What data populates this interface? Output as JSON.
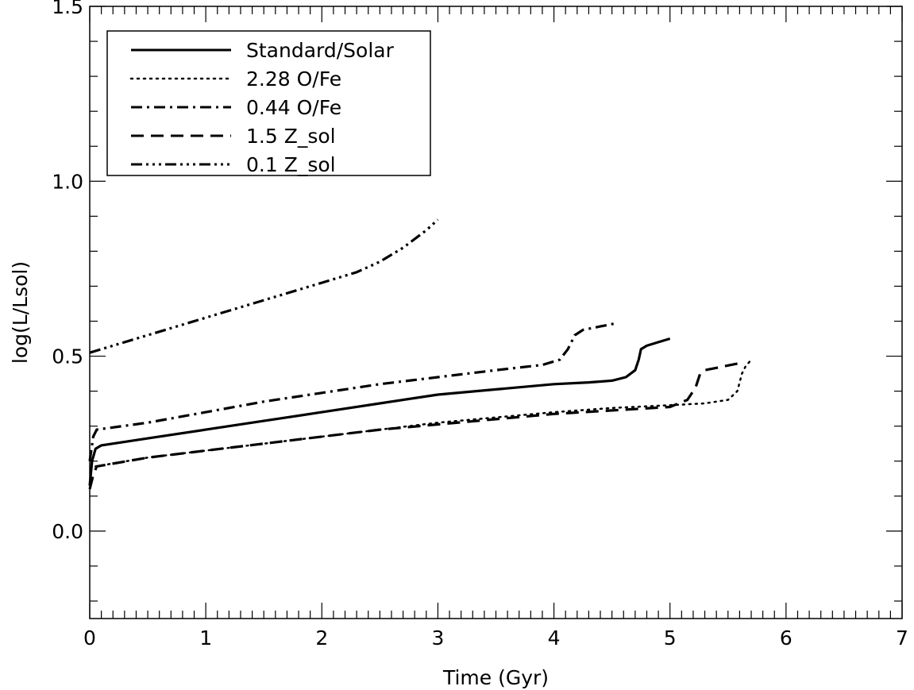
{
  "chart_data": {
    "type": "line",
    "xlabel": "Time (Gyr)",
    "ylabel": "log(L/Lsol)",
    "xlim": [
      0,
      7
    ],
    "ylim": [
      -0.25,
      1.5
    ],
    "x_ticks": [
      {
        "value": 0,
        "label": "0"
      },
      {
        "value": 1,
        "label": "1"
      },
      {
        "value": 2,
        "label": "2"
      },
      {
        "value": 3,
        "label": "3"
      },
      {
        "value": 4,
        "label": "4"
      },
      {
        "value": 5,
        "label": "5"
      },
      {
        "value": 6,
        "label": "6"
      },
      {
        "value": 7,
        "label": "7"
      }
    ],
    "y_ticks": [
      {
        "value": 0.0,
        "label": "0.0"
      },
      {
        "value": 0.5,
        "label": "0.5"
      },
      {
        "value": 1.0,
        "label": "1.0"
      },
      {
        "value": 1.5,
        "label": "1.5"
      }
    ],
    "grid": false,
    "legend_position": "top-left",
    "series": [
      {
        "name": "Standard/Solar",
        "style": "solid",
        "x": [
          0.0,
          0.02,
          0.05,
          0.1,
          0.5,
          1.0,
          1.5,
          2.0,
          2.5,
          3.0,
          3.5,
          4.0,
          4.3,
          4.5,
          4.62,
          4.7,
          4.73,
          4.75,
          4.8,
          4.9,
          5.0
        ],
        "y": [
          0.13,
          0.2,
          0.235,
          0.245,
          0.265,
          0.29,
          0.315,
          0.34,
          0.365,
          0.39,
          0.405,
          0.42,
          0.425,
          0.43,
          0.44,
          0.46,
          0.49,
          0.52,
          0.53,
          0.54,
          0.55
        ]
      },
      {
        "name": "2.28 O/Fe",
        "style": "dotted",
        "x": [
          0.05,
          0.5,
          1.0,
          1.5,
          2.0,
          2.5,
          3.0,
          3.5,
          4.0,
          4.5,
          5.0,
          5.3,
          5.5,
          5.58,
          5.62,
          5.65,
          5.7
        ],
        "y": [
          0.185,
          0.21,
          0.23,
          0.25,
          0.27,
          0.29,
          0.31,
          0.325,
          0.34,
          0.352,
          0.36,
          0.365,
          0.375,
          0.4,
          0.45,
          0.47,
          0.49
        ]
      },
      {
        "name": "0.44 O/Fe",
        "style": "dashdot",
        "x": [
          0.0,
          0.03,
          0.06,
          0.5,
          1.0,
          1.5,
          2.0,
          2.5,
          3.0,
          3.5,
          3.9,
          4.05,
          4.12,
          4.18,
          4.25,
          4.4,
          4.55
        ],
        "y": [
          0.2,
          0.27,
          0.29,
          0.31,
          0.34,
          0.37,
          0.395,
          0.42,
          0.44,
          0.46,
          0.475,
          0.49,
          0.52,
          0.56,
          0.575,
          0.585,
          0.595
        ]
      },
      {
        "name": "1.5 Z_sol",
        "style": "dashed",
        "x": [
          0.0,
          0.03,
          0.06,
          0.5,
          1.0,
          1.5,
          2.0,
          2.5,
          3.0,
          3.5,
          4.0,
          4.5,
          5.0,
          5.15,
          5.22,
          5.26,
          5.3,
          5.45,
          5.6
        ],
        "y": [
          0.12,
          0.16,
          0.185,
          0.21,
          0.23,
          0.25,
          0.27,
          0.29,
          0.305,
          0.32,
          0.335,
          0.345,
          0.355,
          0.375,
          0.41,
          0.45,
          0.46,
          0.47,
          0.48
        ]
      },
      {
        "name": "0.1 Z_sol",
        "style": "dashdotdotdot",
        "x": [
          0.0,
          0.5,
          1.0,
          1.5,
          2.0,
          2.3,
          2.5,
          2.7,
          2.9,
          3.0
        ],
        "y": [
          0.51,
          0.56,
          0.61,
          0.66,
          0.71,
          0.74,
          0.77,
          0.81,
          0.86,
          0.89
        ]
      }
    ]
  }
}
